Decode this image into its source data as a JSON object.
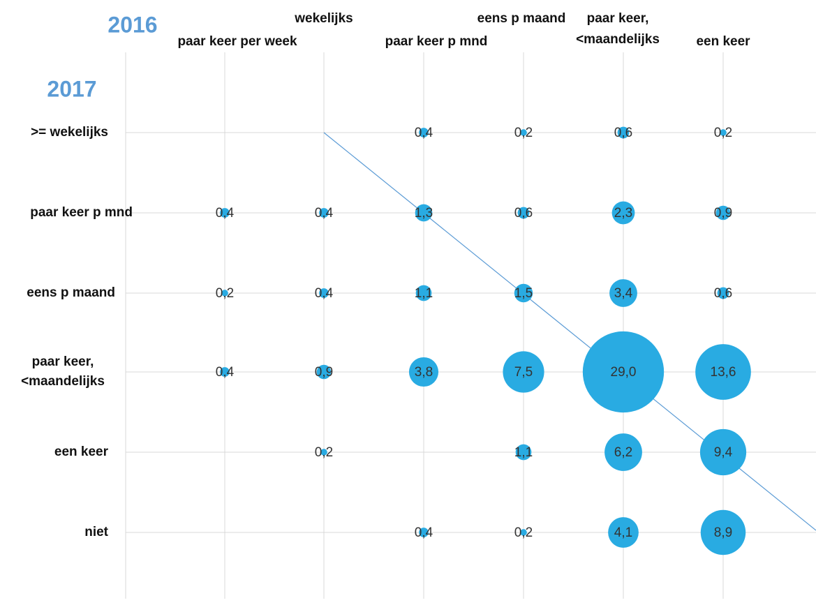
{
  "chart_data": {
    "type": "bubble-matrix",
    "x_title": "2016",
    "y_title": "2017",
    "columns": [
      [
        "paar keer per week"
      ],
      [
        "wekelijks"
      ],
      [
        "paar keer p mnd"
      ],
      [
        "eens p maand"
      ],
      [
        "paar keer,",
        "<maandelijks"
      ],
      [
        "een keer"
      ]
    ],
    "rows": [
      [
        ">= wekelijks"
      ],
      [
        "paar keer p mnd"
      ],
      [
        "eens p maand"
      ],
      [
        "paar keer,",
        "<maandelijks"
      ],
      [
        "een keer"
      ],
      [
        "niet"
      ]
    ],
    "values": [
      [
        null,
        null,
        0.4,
        0.2,
        0.6,
        0.2
      ],
      [
        0.4,
        0.4,
        1.3,
        0.6,
        2.3,
        0.9
      ],
      [
        0.2,
        0.4,
        1.1,
        1.5,
        3.4,
        0.6
      ],
      [
        0.4,
        0.9,
        3.8,
        7.5,
        29.0,
        13.6
      ],
      [
        null,
        0.2,
        null,
        1.1,
        6.2,
        9.4
      ],
      [
        null,
        null,
        0.4,
        0.2,
        4.1,
        8.9
      ]
    ],
    "value_labels": [
      [
        null,
        null,
        "0,4",
        "0,2",
        "0,6",
        "0,2"
      ],
      [
        "0,4",
        "0,4",
        "1,3",
        "0,6",
        "2,3",
        "0,9"
      ],
      [
        "0,2",
        "0,4",
        "1,1",
        "1,5",
        "3,4",
        "0,6"
      ],
      [
        "0,4",
        "0,9",
        "3,8",
        "7,5",
        "29,0",
        "13,6"
      ],
      [
        null,
        "0,2",
        null,
        "1,1",
        "6,2",
        "9,4"
      ],
      [
        null,
        null,
        "0,4",
        "0,2",
        "4,1",
        "8,9"
      ]
    ],
    "color": "#29abe2",
    "title_color": "#5b9bd5",
    "grid": true
  }
}
